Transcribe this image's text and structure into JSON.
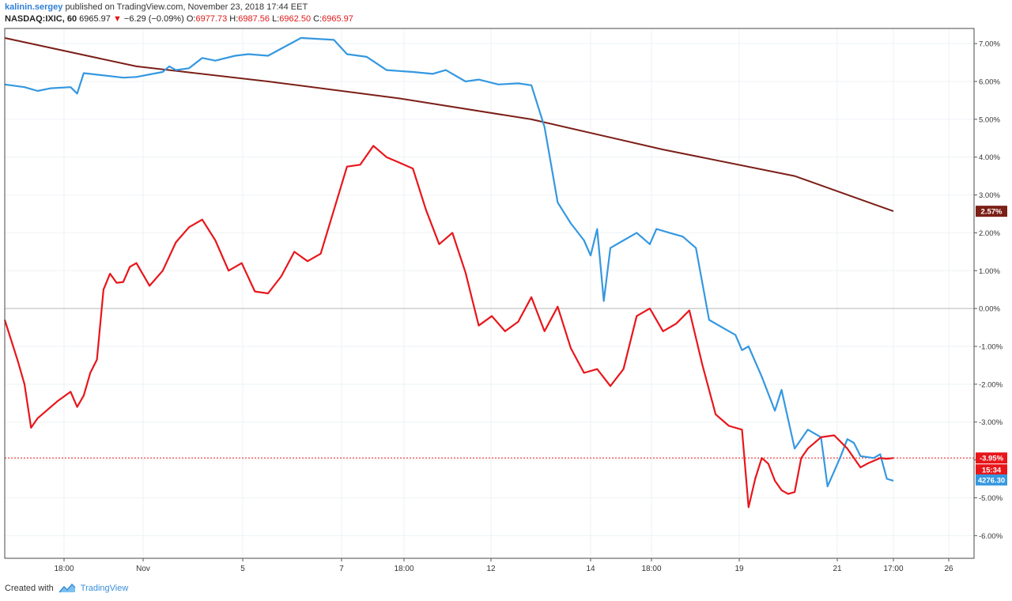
{
  "header": {
    "user": "kalinin.sergey",
    "published": "published on TradingView.com, November 23, 2018 17:44 EET",
    "symbol": "NASDAQ:IXIC, 60",
    "price": "6965.97",
    "change": "−6.29 (−0.09%)",
    "open_label": "O:",
    "open": "6977.73",
    "high_label": "H:",
    "high": "6987.56",
    "low_label": "L:",
    "low": "6962.50",
    "close_label": "C:",
    "close": "6965.97"
  },
  "footer": {
    "created": "Created with",
    "brand": "TradingView"
  },
  "icons": {
    "change_arrow": "triangle-down-icon",
    "logo": "tradingview-logo-icon"
  },
  "colors": {
    "red_series": "#e8161b",
    "blue_series": "#3598e0",
    "brown_series": "#7b1f17",
    "zero_line": "#b8b8b8",
    "last_price_line": "#e8161b"
  },
  "chart_data": {
    "type": "line",
    "ylim": [
      -6.6,
      7.4
    ],
    "y_ticks": [
      "7.00%",
      "6.00%",
      "5.00%",
      "4.00%",
      "3.00%",
      "2.00%",
      "1.00%",
      "0.00%",
      "-1.00%",
      "-2.00%",
      "-3.00%",
      "-4.00%",
      "-5.00%",
      "-6.00%"
    ],
    "x_ticks": [
      "18:00",
      "Nov",
      "5",
      "7",
      "18:00",
      "12",
      "14",
      "18:00",
      "19",
      "21",
      "17:00",
      "26"
    ],
    "reference_line": 0,
    "price_labels": {
      "brown": "2.57%",
      "red": "-3.95%",
      "countdown": "15:34",
      "blue": "4276.30"
    },
    "series": [
      {
        "color": "#7b1f17",
        "x": [
          0,
          20,
          40,
          60,
          80,
          100,
          120,
          135
        ],
        "y": [
          7.15,
          6.4,
          6.0,
          5.55,
          5.0,
          4.2,
          3.5,
          2.57
        ]
      },
      {
        "color": "#3598e0",
        "x": [
          0,
          3,
          5,
          7,
          10,
          11,
          12,
          18,
          20,
          24,
          25,
          26,
          28,
          30,
          32,
          35,
          37,
          40,
          45,
          50,
          52,
          55,
          58,
          62,
          65,
          67,
          70,
          72,
          75,
          78,
          80,
          82,
          84,
          86,
          88,
          89,
          90,
          91,
          92,
          94,
          95,
          96,
          98,
          99,
          100,
          101,
          103,
          105,
          107,
          109,
          111,
          112,
          113,
          115,
          117,
          118,
          120,
          122,
          124,
          125,
          126,
          127,
          128,
          129,
          130,
          132,
          133,
          134,
          135
        ],
        "y": [
          5.92,
          5.85,
          5.75,
          5.82,
          5.85,
          5.68,
          6.22,
          6.1,
          6.12,
          6.25,
          6.4,
          6.3,
          6.35,
          6.62,
          6.55,
          6.68,
          6.72,
          6.68,
          7.15,
          7.1,
          6.72,
          6.65,
          6.3,
          6.25,
          6.2,
          6.3,
          6.0,
          6.05,
          5.92,
          5.95,
          5.9,
          4.8,
          2.8,
          2.25,
          1.8,
          1.4,
          2.1,
          0.2,
          1.6,
          1.8,
          1.9,
          2.0,
          1.7,
          2.1,
          2.05,
          2.0,
          1.9,
          1.6,
          -0.3,
          -0.5,
          -0.7,
          -1.1,
          -1.0,
          -1.8,
          -2.7,
          -2.15,
          -3.7,
          -3.2,
          -3.4,
          -4.7,
          -4.3,
          -3.9,
          -3.45,
          -3.55,
          -3.9,
          -3.95,
          -3.85,
          -4.5,
          -4.55
        ]
      },
      {
        "color": "#e8161b",
        "x": [
          0,
          2,
          3,
          4,
          5,
          8,
          10,
          11,
          12,
          13,
          14,
          15,
          16,
          17,
          18,
          19,
          20,
          22,
          24,
          26,
          28,
          30,
          32,
          34,
          36,
          38,
          40,
          42,
          44,
          46,
          48,
          50,
          52,
          54,
          56,
          58,
          60,
          62,
          64,
          66,
          68,
          70,
          72,
          74,
          76,
          78,
          80,
          82,
          84,
          86,
          88,
          90,
          92,
          94,
          96,
          98,
          100,
          102,
          104,
          106,
          108,
          110,
          112,
          113,
          114,
          115,
          116,
          117,
          118,
          119,
          120,
          121,
          122,
          124,
          126,
          128,
          130,
          131,
          133,
          134,
          135
        ],
        "y": [
          -0.3,
          -1.4,
          -2.0,
          -3.15,
          -2.9,
          -2.45,
          -2.2,
          -2.6,
          -2.3,
          -1.7,
          -1.35,
          0.5,
          0.92,
          0.68,
          0.7,
          1.1,
          1.2,
          0.6,
          1.0,
          1.75,
          2.15,
          2.35,
          1.8,
          1.0,
          1.2,
          0.45,
          0.4,
          0.85,
          1.5,
          1.25,
          1.45,
          2.6,
          3.75,
          3.8,
          4.3,
          4.0,
          3.85,
          3.7,
          2.6,
          1.7,
          2.0,
          0.95,
          -0.45,
          -0.2,
          -0.6,
          -0.35,
          0.3,
          -0.6,
          0.05,
          -1.05,
          -1.7,
          -1.6,
          -2.05,
          -1.6,
          -0.2,
          0.0,
          -0.6,
          -0.4,
          -0.05,
          -1.5,
          -2.8,
          -3.1,
          -3.2,
          -5.25,
          -4.5,
          -3.95,
          -4.1,
          -4.55,
          -4.8,
          -4.9,
          -4.85,
          -3.95,
          -3.7,
          -3.4,
          -3.35,
          -3.7,
          -4.2,
          -4.1,
          -3.95,
          -3.97,
          -3.95
        ]
      }
    ]
  }
}
